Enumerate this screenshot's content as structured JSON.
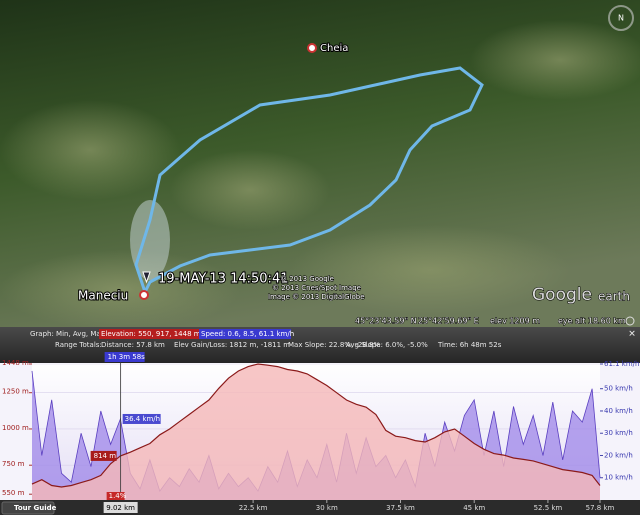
{
  "ui": {
    "map": {
      "places": [
        "Cheia",
        "Maneciu"
      ],
      "timestamp": "19-MAY-13 14:50:41",
      "credits": [
        "© 2013 Google",
        "© 2013 Cnes/Spot Image",
        "Image © 2013 DigitalGlobe"
      ],
      "logo": [
        "Google",
        "earth"
      ],
      "status": [
        "45°23'43.59\" N",
        "25°42'59.69\" E",
        "elev 1209 m",
        "eye alt 18.60 km"
      ]
    },
    "header": {
      "graph": "Graph: Min, Avg, Max",
      "elevation": "Elevation: 550, 917, 1448 m",
      "speed": "Speed: 0.6, 8.5, 61.1 km/h",
      "range_totals": "Range Totals:",
      "distance": "Distance: 57.8 km",
      "elev_gain_loss": "Elev Gain/Loss: 1812 m, -1811 m",
      "max_slope": "Max Slope: 22.8%, -28.8%",
      "avg_slope": "Avg Slope: 6.0%, -5.0%",
      "time": "Time: 6h 48m 52s"
    },
    "tour_guide": "Tour Guide"
  },
  "chart_data": {
    "type": "profile",
    "x": [
      0,
      1,
      2,
      3,
      4,
      5,
      6,
      7,
      8,
      9,
      10,
      11,
      12,
      13,
      14,
      15,
      16,
      17,
      18,
      19,
      20,
      21,
      22,
      23,
      24,
      25,
      26,
      27,
      28,
      29,
      30,
      31,
      32,
      33,
      34,
      35,
      36,
      37,
      38,
      39,
      40,
      41,
      42,
      43,
      44,
      45,
      46,
      47,
      48,
      49,
      50,
      51,
      52,
      53,
      54,
      55,
      56,
      57,
      57.8
    ],
    "series": [
      {
        "name": "Elevation",
        "color": "#8b1a1a",
        "fill": "#f5b8b8",
        "values": [
          620,
          650,
          610,
          600,
          610,
          630,
          650,
          680,
          760,
          814,
          840,
          870,
          900,
          960,
          1000,
          1050,
          1100,
          1150,
          1200,
          1280,
          1350,
          1400,
          1430,
          1448,
          1440,
          1430,
          1410,
          1400,
          1380,
          1340,
          1300,
          1250,
          1200,
          1170,
          1150,
          1100,
          990,
          950,
          940,
          920,
          910,
          940,
          980,
          1000,
          950,
          900,
          860,
          830,
          820,
          800,
          790,
          780,
          760,
          740,
          720,
          710,
          700,
          680,
          610
        ]
      },
      {
        "name": "Speed",
        "color": "#5a3fc0",
        "fill": "#9d86e8",
        "axis": "y2",
        "values": [
          58,
          20,
          45,
          12,
          8,
          30,
          15,
          40,
          25,
          36.4,
          12,
          5,
          18,
          4,
          10,
          6,
          14,
          8,
          20,
          5,
          12,
          6,
          10,
          4,
          15,
          8,
          22,
          6,
          18,
          10,
          25,
          8,
          30,
          12,
          28,
          15,
          20,
          10,
          18,
          6,
          30,
          15,
          35,
          22,
          38,
          45,
          20,
          40,
          15,
          42,
          25,
          38,
          20,
          44,
          18,
          40,
          35,
          50,
          10
        ]
      }
    ],
    "xlim": [
      0,
      57.8
    ],
    "xticks": [
      {
        "value": 22.5,
        "label": "22.5 km"
      },
      {
        "value": 30,
        "label": "30 km"
      },
      {
        "value": 37.5,
        "label": "37.5 km"
      },
      {
        "value": 45,
        "label": "45 km"
      },
      {
        "value": 52.5,
        "label": "52.5 km"
      },
      {
        "value": 57.8,
        "label": "57.8 km"
      }
    ],
    "ylim": [
      510,
      1448
    ],
    "yticks": [
      {
        "value": 550,
        "label": "550 m"
      },
      {
        "value": 750,
        "label": "750 m"
      },
      {
        "value": 1000,
        "label": "1000 m"
      },
      {
        "value": 1250,
        "label": "1250 m"
      },
      {
        "value": 1448,
        "label": "1448 m"
      }
    ],
    "y2lim": [
      0,
      61.1
    ],
    "y2ticks": [
      {
        "value": 10,
        "label": "10 km/h"
      },
      {
        "value": 20,
        "label": "20 km/h"
      },
      {
        "value": 30,
        "label": "30 km/h"
      },
      {
        "value": 40,
        "label": "40 km/h"
      },
      {
        "value": 50,
        "label": "50 km/h"
      },
      {
        "value": 61.1,
        "label": "61.1 km/h"
      }
    ],
    "grid": true,
    "cursor": {
      "x": {
        "value": 9.02,
        "label": "9.02 km"
      },
      "elevation": {
        "value": 814,
        "label": "814 m"
      },
      "speed": {
        "value": 36.4,
        "label": "36.4 km/h"
      },
      "slope": "1.4%",
      "time": "1h 3m 58s"
    }
  }
}
